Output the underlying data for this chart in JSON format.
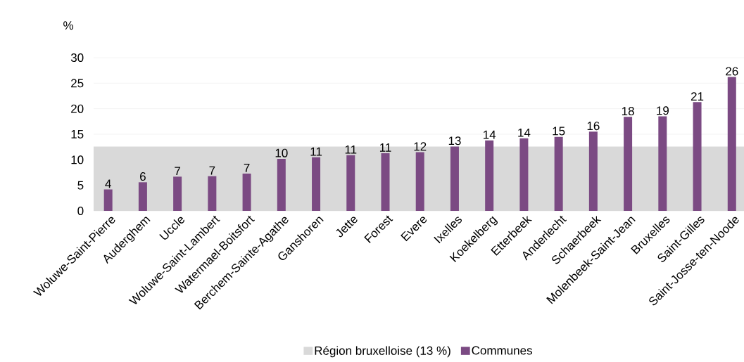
{
  "chart_data": {
    "type": "bar",
    "ylabel": "%",
    "categories": [
      "Woluwe-Saint-Pierre",
      "Auderghem",
      "Uccle",
      "Woluwe-Saint-Lambert",
      "Watermael-Boitsfort",
      "Berchem-Sainte-Agathe",
      "Ganshoren",
      "Jette",
      "Forest",
      "Evere",
      "Ixelles",
      "Koekelberg",
      "Etterbeek",
      "Anderlecht",
      "Schaerbeek",
      "Molenbeek-Saint-Jean",
      "Bruxelles",
      "Saint-Gilles",
      "Saint-Josse-ten-Noode"
    ],
    "series": [
      {
        "name": "Communes",
        "color": "#7b4a83",
        "values": [
          4.2,
          5.6,
          6.7,
          6.8,
          7.3,
          10.2,
          10.5,
          10.9,
          11.3,
          11.5,
          12.6,
          13.8,
          14.2,
          14.5,
          15.5,
          18.4,
          18.5,
          21.3,
          26.2
        ],
        "value_labels": [
          "4",
          "6",
          "7",
          "7",
          "7",
          "10",
          "11",
          "11",
          "11",
          "12",
          "13",
          "14",
          "14",
          "15",
          "16",
          "18",
          "19",
          "21",
          "26"
        ]
      }
    ],
    "bands": [
      {
        "axis": "y",
        "from": 0,
        "to": 12.6,
        "label": "Région bruxelloise (13 %)",
        "color": "#d9d9d9"
      }
    ],
    "ylim": [
      0,
      30
    ],
    "yticks": [
      0,
      5,
      10,
      15,
      20,
      25,
      30
    ],
    "grid": "y",
    "legend": "bottom"
  }
}
